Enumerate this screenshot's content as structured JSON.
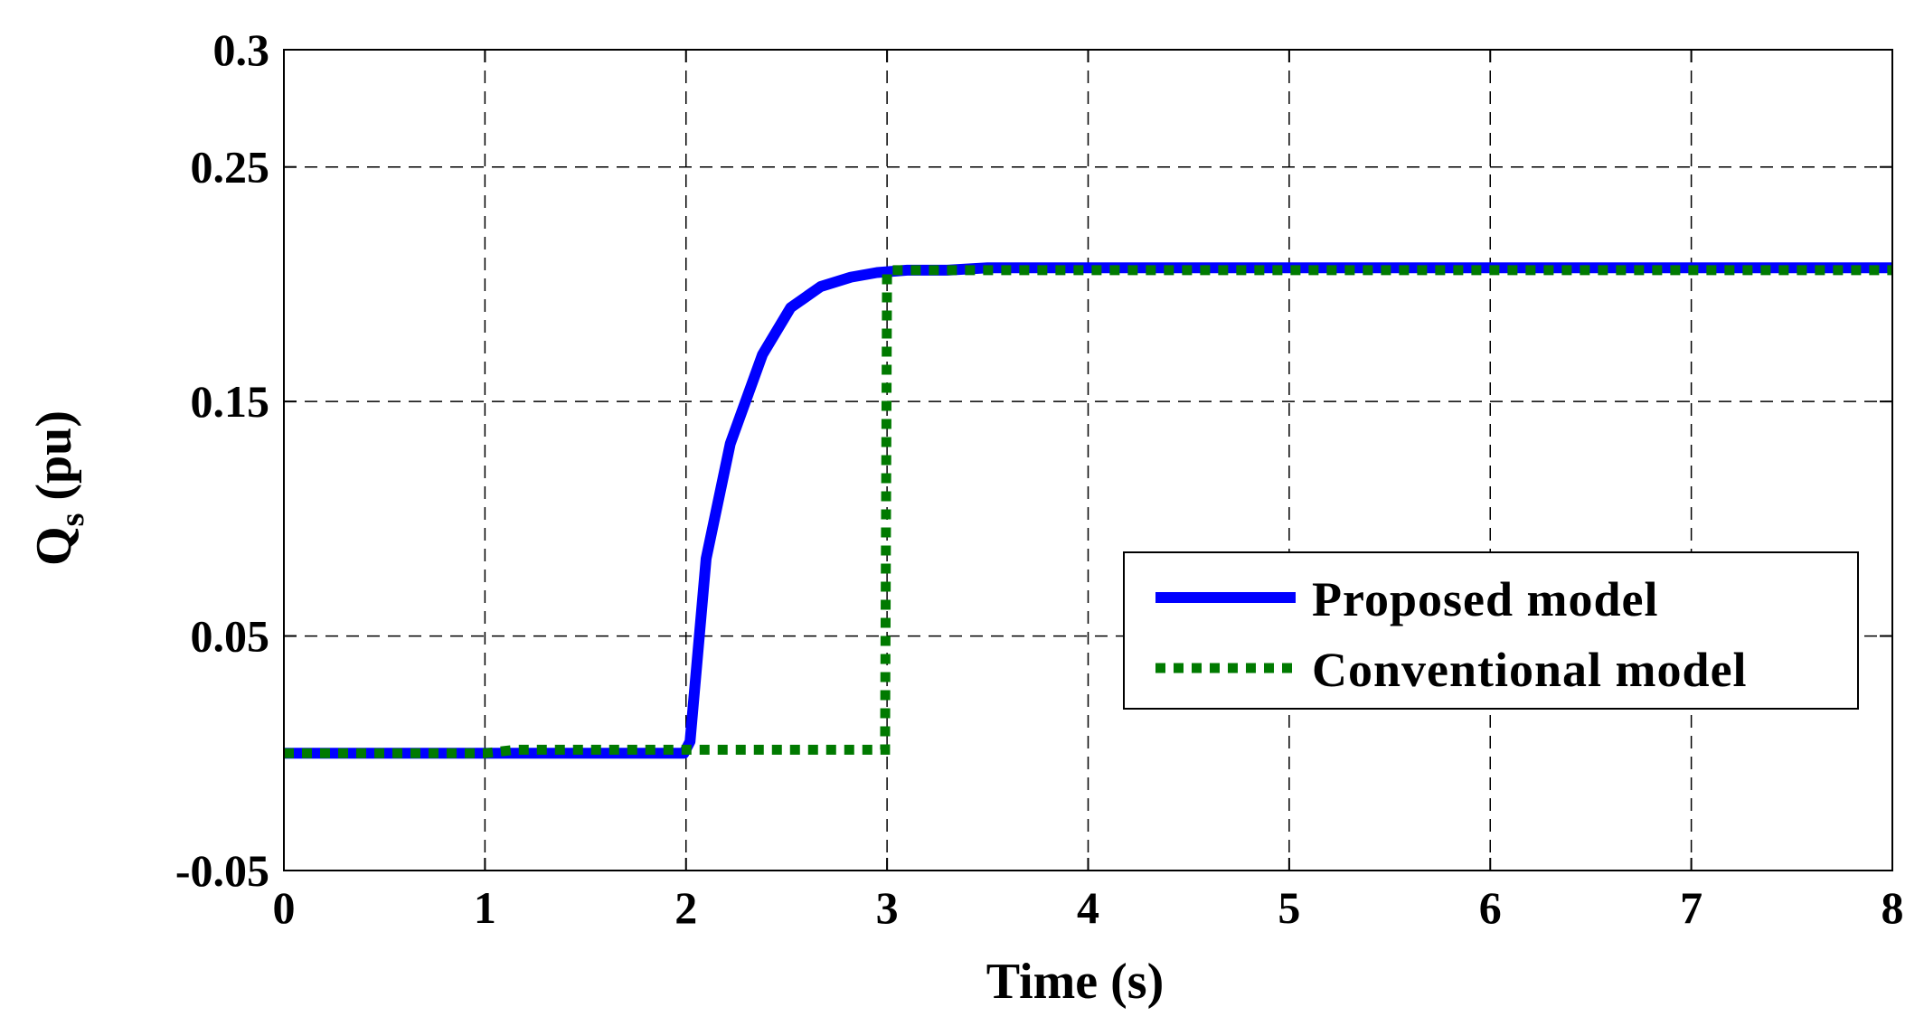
{
  "chart_data": {
    "type": "line",
    "xlabel": "Time (s)",
    "ylabel": {
      "main": "Q",
      "sub": "s",
      "unit": " (pu)"
    },
    "xlim": [
      0,
      8
    ],
    "ylim": [
      -0.05,
      0.3
    ],
    "xticks": [
      0,
      1,
      2,
      3,
      4,
      5,
      6,
      7,
      8
    ],
    "yticks": [
      -0.05,
      0.05,
      0.15,
      0.25,
      0.3
    ],
    "ytick_labels": [
      "-0.05",
      "0.05",
      "0.15",
      "0.25",
      "0.3"
    ],
    "grid": true,
    "legend_position": "right",
    "series": [
      {
        "name": "Proposed model",
        "color": "#0000ff",
        "style": "solid",
        "x": [
          0,
          1.0,
          1.99,
          2.02,
          2.1,
          2.22,
          2.38,
          2.52,
          2.67,
          2.82,
          2.95,
          3.1,
          3.3,
          3.5,
          4.0,
          5.0,
          6.0,
          7.0,
          8.0
        ],
        "y": [
          0,
          0,
          0,
          0.005,
          0.083,
          0.132,
          0.17,
          0.19,
          0.199,
          0.203,
          0.205,
          0.206,
          0.206,
          0.207,
          0.207,
          0.207,
          0.207,
          0.207,
          0.207
        ]
      },
      {
        "name": "Conventional model",
        "color": "#007a00",
        "style": "dotted",
        "x": [
          0,
          1.0,
          1.15,
          2.0,
          2.99,
          3.0,
          3.02,
          3.3,
          3.5,
          4.0,
          5.0,
          6.0,
          7.0,
          8.0
        ],
        "y": [
          0,
          0,
          0.0015,
          0.0015,
          0.0015,
          0.205,
          0.206,
          0.206,
          0.206,
          0.206,
          0.206,
          0.206,
          0.206,
          0.206
        ]
      }
    ]
  }
}
